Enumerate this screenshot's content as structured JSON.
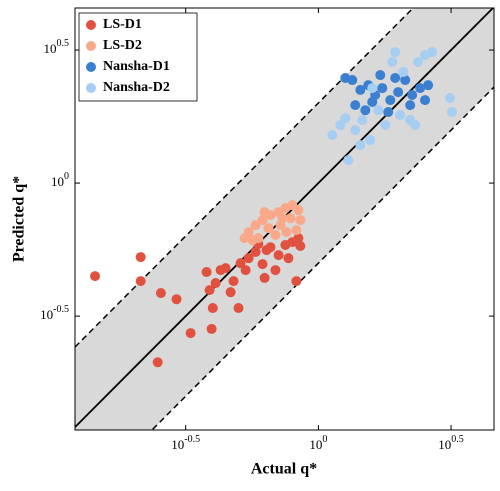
{
  "chart_data": {
    "type": "scatter",
    "xlabel": "Actual q*",
    "ylabel": "Predicted q*",
    "log_scale": true,
    "band_factor": 2,
    "band_color": "#d9d9d9",
    "legend": "upper left",
    "xlim": [
      0.121,
      4.59
    ],
    "ylim": [
      0.118,
      4.55
    ],
    "xticks": [
      {
        "value": 0.3162,
        "label": "10^-0.5"
      },
      {
        "value": 1,
        "label": "10^0"
      },
      {
        "value": 3.162,
        "label": "10^0.5"
      }
    ],
    "yticks": [
      {
        "value": 0.3162,
        "label": "10^-0.5"
      },
      {
        "value": 1,
        "label": "10^0"
      },
      {
        "value": 3.162,
        "label": "10^0.5"
      }
    ],
    "series": [
      {
        "name": "LS-D1",
        "color": "#e0523f",
        "x": [
          0.144,
          0.214,
          0.214,
          0.255,
          0.292,
          0.248,
          0.33,
          0.396,
          0.4,
          0.5,
          0.379,
          0.389,
          0.41,
          0.447,
          0.479,
          0.509,
          0.546,
          0.58,
          0.616,
          0.66,
          0.708,
          0.751,
          0.798,
          0.855,
          0.826,
          0.689,
          0.627,
          0.467,
          0.428,
          0.532,
          0.771,
          0.841,
          0.594,
          0.638
        ],
        "values": [
          0.447,
          0.527,
          0.428,
          0.386,
          0.366,
          0.212,
          0.273,
          0.283,
          0.339,
          0.339,
          0.463,
          0.396,
          0.421,
          0.479,
          0.428,
          0.5,
          0.522,
          0.551,
          0.496,
          0.574,
          0.536,
          0.585,
          0.6,
          0.58,
          0.428,
          0.471,
          0.44,
          0.389,
          0.471,
          0.471,
          0.522,
          0.621,
          0.59,
          0.56
        ]
      },
      {
        "name": "LS-D2",
        "color": "#f9a98a",
        "x": [
          0.546,
          0.58,
          0.616,
          0.66,
          0.708,
          0.751,
          0.798,
          0.841,
          0.855,
          0.594,
          0.649,
          0.72,
          0.785,
          0.826,
          0.565,
          0.689,
          0.758,
          0.627,
          0.527,
          0.732
        ],
        "values": [
          0.654,
          0.695,
          0.726,
          0.758,
          0.778,
          0.805,
          0.826,
          0.791,
          0.726,
          0.621,
          0.677,
          0.695,
          0.738,
          0.666,
          0.61,
          0.638,
          0.654,
          0.778,
          0.621,
          0.738
        ]
      },
      {
        "name": "Nansha-D1",
        "color": "#3a7fd0",
        "x": [
          1.263,
          1.342,
          1.439,
          1.542,
          1.637,
          1.741,
          1.866,
          1.998,
          2.124,
          2.256,
          2.418,
          2.592,
          1.377,
          1.503,
          1.711,
          1.947,
          2.218,
          2.523,
          1.833,
          1.596
        ],
        "values": [
          2.483,
          2.439,
          2.239,
          2.333,
          2.143,
          2.275,
          2.051,
          2.198,
          2.439,
          2.143,
          2.275,
          2.333,
          1.963,
          1.879,
          2.547,
          2.483,
          1.963,
          2.051,
          1.849,
          2.018
        ]
      },
      {
        "name": "Nansha-D2",
        "color": "#a6cdf2",
        "x": [
          1.129,
          1.21,
          1.297,
          1.377,
          1.463,
          1.568,
          1.681,
          1.787,
          1.947,
          2.033,
          2.218,
          2.376,
          2.523,
          2.684,
          3.135,
          3.19,
          1.898,
          2.087,
          1.439,
          1.263,
          1.596,
          2.315
        ],
        "values": [
          1.515,
          1.652,
          1.22,
          1.581,
          1.726,
          1.451,
          1.879,
          1.652,
          3.105,
          1.801,
          1.726,
          2.851,
          3.029,
          3.105,
          2.088,
          1.849,
          2.851,
          2.614,
          1.389,
          1.754,
          2.275,
          1.652
        ]
      }
    ]
  }
}
